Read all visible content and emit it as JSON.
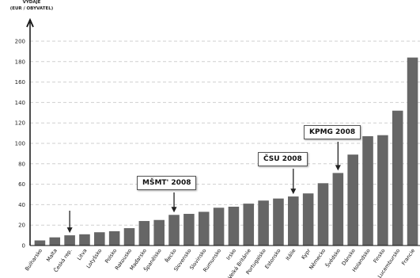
{
  "chart_data": {
    "type": "bar",
    "title": "",
    "xlabel": "",
    "ylabel": [
      "VÝDAJE",
      "(EUR / OBYVATEL)"
    ],
    "ylim": [
      0,
      200
    ],
    "yticks": [
      0,
      20,
      40,
      60,
      80,
      100,
      120,
      140,
      160,
      180,
      200
    ],
    "grid": true,
    "bar_color": "#666666",
    "categories": [
      "Bulharsko",
      "Malta",
      "Česká rep.",
      "Litva",
      "Lotyšsko",
      "Polsko",
      "Rakousko",
      "Maďarsko",
      "Španělsko",
      "Řecko",
      "Slovensko",
      "Slovinsko",
      "Rumunsko",
      "Irsko",
      "Velká Británie",
      "Portugalsko",
      "Estonsko",
      "Itálie",
      "Kypr",
      "Německo",
      "Švédsko",
      "Dánsko",
      "Holandsko",
      "Finsko",
      "Lucembursko",
      "Francie"
    ],
    "values": [
      5,
      8,
      10,
      11,
      13,
      14,
      17,
      24,
      25,
      30,
      31,
      33,
      37,
      38,
      41,
      44,
      46,
      48,
      51,
      61,
      71,
      89,
      107,
      108,
      132,
      184
    ],
    "annotations": [
      {
        "text": "MŠMT' 2008",
        "category": "Řecko"
      },
      {
        "text": "ČSU 2008",
        "category": "Itálie"
      },
      {
        "text": "KPMG 2008",
        "category": "Švédsko"
      },
      {
        "text": "",
        "category": "Česká rep."
      }
    ]
  }
}
